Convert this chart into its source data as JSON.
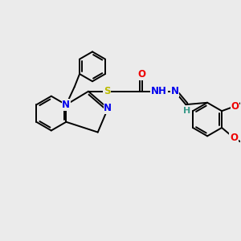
{
  "bg_color": "#ebebeb",
  "bond_color": "#000000",
  "bond_width": 1.4,
  "dbo": 0.09,
  "atom_colors": {
    "N": "#0000ee",
    "O": "#ee0000",
    "S": "#bbbb00",
    "H": "#3a9a8a"
  },
  "fs": 8.5
}
